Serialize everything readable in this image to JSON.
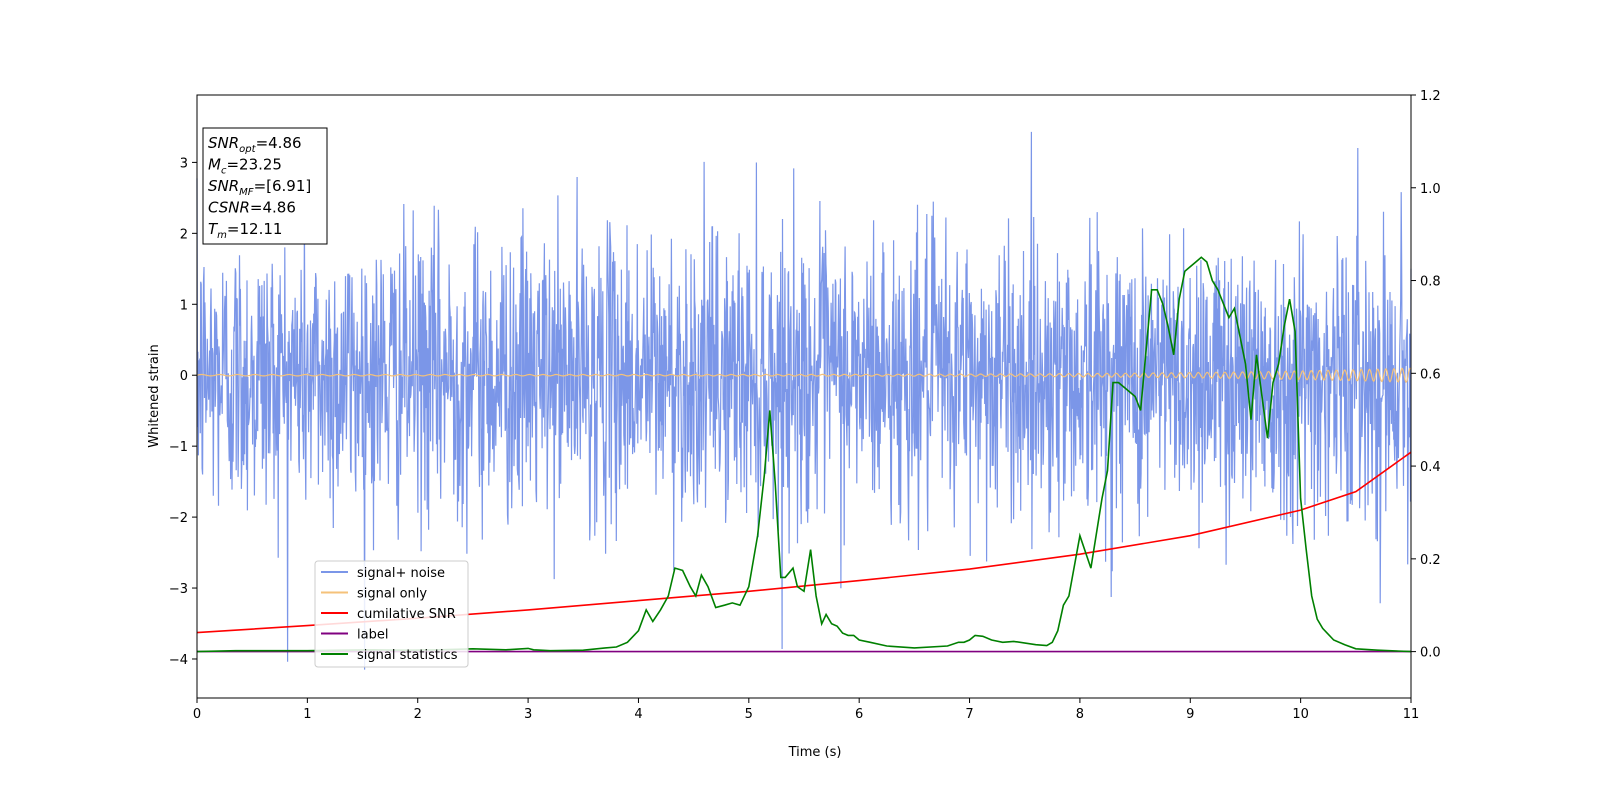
{
  "chart_data": {
    "type": "line",
    "xlabel": "Time (s)",
    "ylabel": "Whitened strain",
    "xlim": [
      0,
      11
    ],
    "ylim": [
      -4.55,
      3.95
    ],
    "y2lim": [
      -0.1,
      1.2
    ],
    "x_ticks": [
      "0",
      "1",
      "2",
      "3",
      "4",
      "5",
      "6",
      "7",
      "8",
      "9",
      "10",
      "11"
    ],
    "y_ticks": [
      "−4",
      "−3",
      "−2",
      "−1",
      "0",
      "1",
      "2",
      "3"
    ],
    "y2_ticks": [
      "0.0",
      "0.2",
      "0.4",
      "0.6",
      "0.8",
      "1.0",
      "1.2"
    ],
    "grid": false,
    "legend_position": "lower-left",
    "annotation": {
      "lines": [
        {
          "sym": "SNR",
          "sub": "opt",
          "val": "=4.86"
        },
        {
          "sym": "M",
          "sub": "c",
          "val": "=23.25"
        },
        {
          "sym": "SNR",
          "sub": "MF",
          "val": "=[6.91]"
        },
        {
          "sym": "CSNR",
          "sub": "",
          "val": "=4.86"
        },
        {
          "sym": "T",
          "sub": "m",
          "val": "=12.11"
        }
      ]
    },
    "series": [
      {
        "name": "signal+ noise",
        "color": "#7b96e8",
        "axis": "left",
        "kind": "noise",
        "amplitude_std": 1.0,
        "peak_min": -4.15,
        "peak_max": 3.6
      },
      {
        "name": "signal only",
        "color": "#f5c27a",
        "axis": "left",
        "kind": "chirp",
        "amplitude_start": 0.01,
        "amplitude_end": 0.1
      },
      {
        "name": "cumilative SNR",
        "color": "#ff0000",
        "axis": "right",
        "x": [
          0,
          1,
          2,
          3,
          4,
          5,
          6,
          7,
          8,
          9,
          10,
          10.5,
          11
        ],
        "y": [
          0.041,
          0.056,
          0.072,
          0.09,
          0.11,
          0.13,
          0.153,
          0.178,
          0.21,
          0.25,
          0.305,
          0.345,
          0.43
        ]
      },
      {
        "name": "label",
        "color": "#800080",
        "axis": "right",
        "x": [
          0,
          11
        ],
        "y": [
          0.0,
          0.0
        ]
      },
      {
        "name": "signal statistics",
        "color": "#008000",
        "axis": "right",
        "x": [
          0,
          0.35,
          0.6,
          0.8,
          1.0,
          1.3,
          1.6,
          1.9,
          2.2,
          2.5,
          2.8,
          3.0,
          3.05,
          3.2,
          3.5,
          3.7,
          3.8,
          3.9,
          4.0,
          4.07,
          4.13,
          4.2,
          4.27,
          4.33,
          4.4,
          4.47,
          4.52,
          4.57,
          4.63,
          4.7,
          4.78,
          4.85,
          4.92,
          4.98,
          5.0,
          5.08,
          5.14,
          5.19,
          5.24,
          5.29,
          5.33,
          5.4,
          5.44,
          5.5,
          5.56,
          5.61,
          5.66,
          5.7,
          5.75,
          5.8,
          5.85,
          5.9,
          5.95,
          6.0,
          6.1,
          6.25,
          6.5,
          6.8,
          6.9,
          6.95,
          7.0,
          7.05,
          7.12,
          7.2,
          7.3,
          7.4,
          7.6,
          7.7,
          7.75,
          7.8,
          7.85,
          7.9,
          8.0,
          8.1,
          8.2,
          8.25,
          8.3,
          8.35,
          8.4,
          8.45,
          8.5,
          8.55,
          8.6,
          8.65,
          8.7,
          8.75,
          8.8,
          8.85,
          8.9,
          8.95,
          9.0,
          9.05,
          9.1,
          9.15,
          9.2,
          9.25,
          9.3,
          9.35,
          9.4,
          9.5,
          9.55,
          9.6,
          9.65,
          9.7,
          9.75,
          9.8,
          9.85,
          9.9,
          9.95,
          10.0,
          10.05,
          10.1,
          10.15,
          10.2,
          10.3,
          10.4,
          10.5,
          10.7,
          11.0
        ],
        "y": [
          0.0,
          0.002,
          0.002,
          0.002,
          0.002,
          0.003,
          0.004,
          0.003,
          0.004,
          0.006,
          0.004,
          0.007,
          0.004,
          0.002,
          0.003,
          0.008,
          0.01,
          0.02,
          0.045,
          0.09,
          0.065,
          0.09,
          0.12,
          0.18,
          0.175,
          0.14,
          0.12,
          0.165,
          0.14,
          0.095,
          0.1,
          0.105,
          0.1,
          0.13,
          0.14,
          0.25,
          0.38,
          0.52,
          0.36,
          0.16,
          0.16,
          0.18,
          0.14,
          0.13,
          0.22,
          0.12,
          0.06,
          0.08,
          0.06,
          0.055,
          0.04,
          0.035,
          0.035,
          0.025,
          0.02,
          0.012,
          0.008,
          0.012,
          0.02,
          0.02,
          0.025,
          0.035,
          0.033,
          0.025,
          0.02,
          0.022,
          0.015,
          0.013,
          0.02,
          0.045,
          0.1,
          0.12,
          0.25,
          0.18,
          0.33,
          0.39,
          0.58,
          0.58,
          0.57,
          0.56,
          0.55,
          0.52,
          0.65,
          0.78,
          0.78,
          0.75,
          0.7,
          0.64,
          0.76,
          0.82,
          0.83,
          0.84,
          0.85,
          0.84,
          0.8,
          0.78,
          0.75,
          0.72,
          0.74,
          0.62,
          0.5,
          0.64,
          0.55,
          0.46,
          0.58,
          0.62,
          0.7,
          0.76,
          0.69,
          0.33,
          0.22,
          0.12,
          0.07,
          0.05,
          0.025,
          0.015,
          0.006,
          0.003,
          0.0
        ]
      }
    ]
  }
}
